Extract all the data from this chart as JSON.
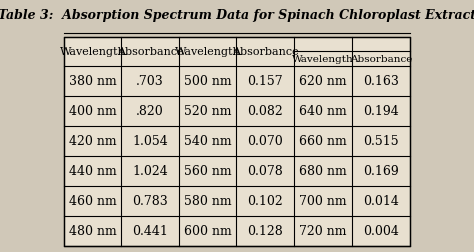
{
  "title": "Table 3:  Absorption Spectrum Data for Spinach Chloroplast Extract",
  "columns": [
    "Wavelength",
    "Absorbance",
    "Wavelength",
    "Absorbance",
    "Wavelength",
    "Absorbance"
  ],
  "rows": [
    [
      "380 nm",
      ".703",
      "500 nm",
      "0.157",
      "620 nm",
      "0.163"
    ],
    [
      "400 nm",
      ".820",
      "520 nm",
      "0.082",
      "640 nm",
      "0.194"
    ],
    [
      "420 nm",
      "1.054",
      "540 nm",
      "0.070",
      "660 nm",
      "0.515"
    ],
    [
      "440 nm",
      "1.024",
      "560 nm",
      "0.078",
      "680 nm",
      "0.169"
    ],
    [
      "460 nm",
      "0.783",
      "580 nm",
      "0.102",
      "700 nm",
      "0.014"
    ],
    [
      "480 nm",
      "0.441",
      "600 nm",
      "0.128",
      "720 nm",
      "0.004"
    ]
  ],
  "bg_color": "#d0c8b8",
  "table_bg": "#e8e0d0",
  "header_fontsize": 8.0,
  "data_fontsize": 9,
  "title_fontsize": 9.0
}
